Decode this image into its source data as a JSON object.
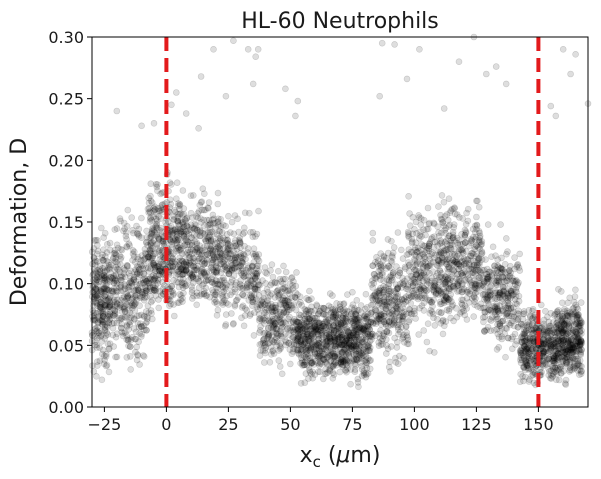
{
  "chart_data": {
    "type": "scatter",
    "title": "HL-60 Neutrophils",
    "xlabel": {
      "base": "x",
      "sub": "c",
      "rest": " (",
      "mu": "μ",
      "unit": "m)"
    },
    "ylabel": "Deformation, D",
    "xlim": [
      -30,
      170
    ],
    "ylim": [
      0,
      0.3
    ],
    "xticks": [
      -25,
      0,
      25,
      50,
      75,
      100,
      125,
      150
    ],
    "xtick_labels": [
      "−25",
      "0",
      "25",
      "50",
      "75",
      "100",
      "125",
      "150"
    ],
    "yticks": [
      0,
      0.05,
      0.1,
      0.15,
      0.2,
      0.25,
      0.3
    ],
    "ytick_labels": [
      "0.00",
      "0.05",
      "0.10",
      "0.15",
      "0.20",
      "0.25",
      "0.30"
    ],
    "grid": false,
    "marker_color": "#000000",
    "marker_alpha": 0.13,
    "reference_lines": [
      {
        "x": 0,
        "color": "#e31a1c",
        "style": "dashed"
      },
      {
        "x": 150,
        "color": "#e31a1c",
        "style": "dashed"
      }
    ],
    "density_profile": [
      {
        "x": -30,
        "d_low": 0.01,
        "d_high": 0.16,
        "count": 260
      },
      {
        "x": -15,
        "d_low": 0.02,
        "d_high": 0.17,
        "count": 330
      },
      {
        "x": 0,
        "d_low": 0.05,
        "d_high": 0.2,
        "count": 420
      },
      {
        "x": 15,
        "d_low": 0.06,
        "d_high": 0.19,
        "count": 320
      },
      {
        "x": 30,
        "d_low": 0.05,
        "d_high": 0.17,
        "count": 260
      },
      {
        "x": 45,
        "d_low": 0.02,
        "d_high": 0.13,
        "count": 270
      },
      {
        "x": 60,
        "d_low": 0.01,
        "d_high": 0.1,
        "count": 400
      },
      {
        "x": 75,
        "d_low": 0.01,
        "d_high": 0.1,
        "count": 420
      },
      {
        "x": 90,
        "d_low": 0.02,
        "d_high": 0.15,
        "count": 300
      },
      {
        "x": 105,
        "d_low": 0.04,
        "d_high": 0.18,
        "count": 310
      },
      {
        "x": 120,
        "d_low": 0.05,
        "d_high": 0.18,
        "count": 320
      },
      {
        "x": 135,
        "d_low": 0.03,
        "d_high": 0.15,
        "count": 280
      },
      {
        "x": 150,
        "d_low": 0.01,
        "d_high": 0.09,
        "count": 380
      },
      {
        "x": 165,
        "d_low": 0.01,
        "d_high": 0.1,
        "count": 340
      }
    ],
    "outliers": [
      [
        27,
        0.297
      ],
      [
        33,
        0.29
      ],
      [
        36,
        0.284
      ],
      [
        14,
        0.268
      ],
      [
        19,
        0.29
      ],
      [
        13,
        0.226
      ],
      [
        4,
        0.255
      ],
      [
        24,
        0.252
      ],
      [
        35,
        0.262
      ],
      [
        37,
        0.29
      ],
      [
        48,
        0.258
      ],
      [
        53,
        0.248
      ],
      [
        52,
        0.236
      ],
      [
        87,
        0.295
      ],
      [
        86,
        0.252
      ],
      [
        92,
        0.294
      ],
      [
        97,
        0.266
      ],
      [
        102,
        0.29
      ],
      [
        112,
        0.242
      ],
      [
        118,
        0.28
      ],
      [
        129,
        0.27
      ],
      [
        133,
        0.276
      ],
      [
        124,
        0.3
      ],
      [
        137,
        0.262
      ],
      [
        155,
        0.244
      ],
      [
        157,
        0.236
      ],
      [
        160,
        0.29
      ],
      [
        165,
        0.286
      ],
      [
        163,
        0.27
      ],
      [
        -20,
        0.24
      ],
      [
        -10,
        0.228
      ],
      [
        -5,
        0.23
      ],
      [
        8,
        0.238
      ],
      [
        2,
        0.245
      ],
      [
        170,
        0.246
      ]
    ]
  }
}
